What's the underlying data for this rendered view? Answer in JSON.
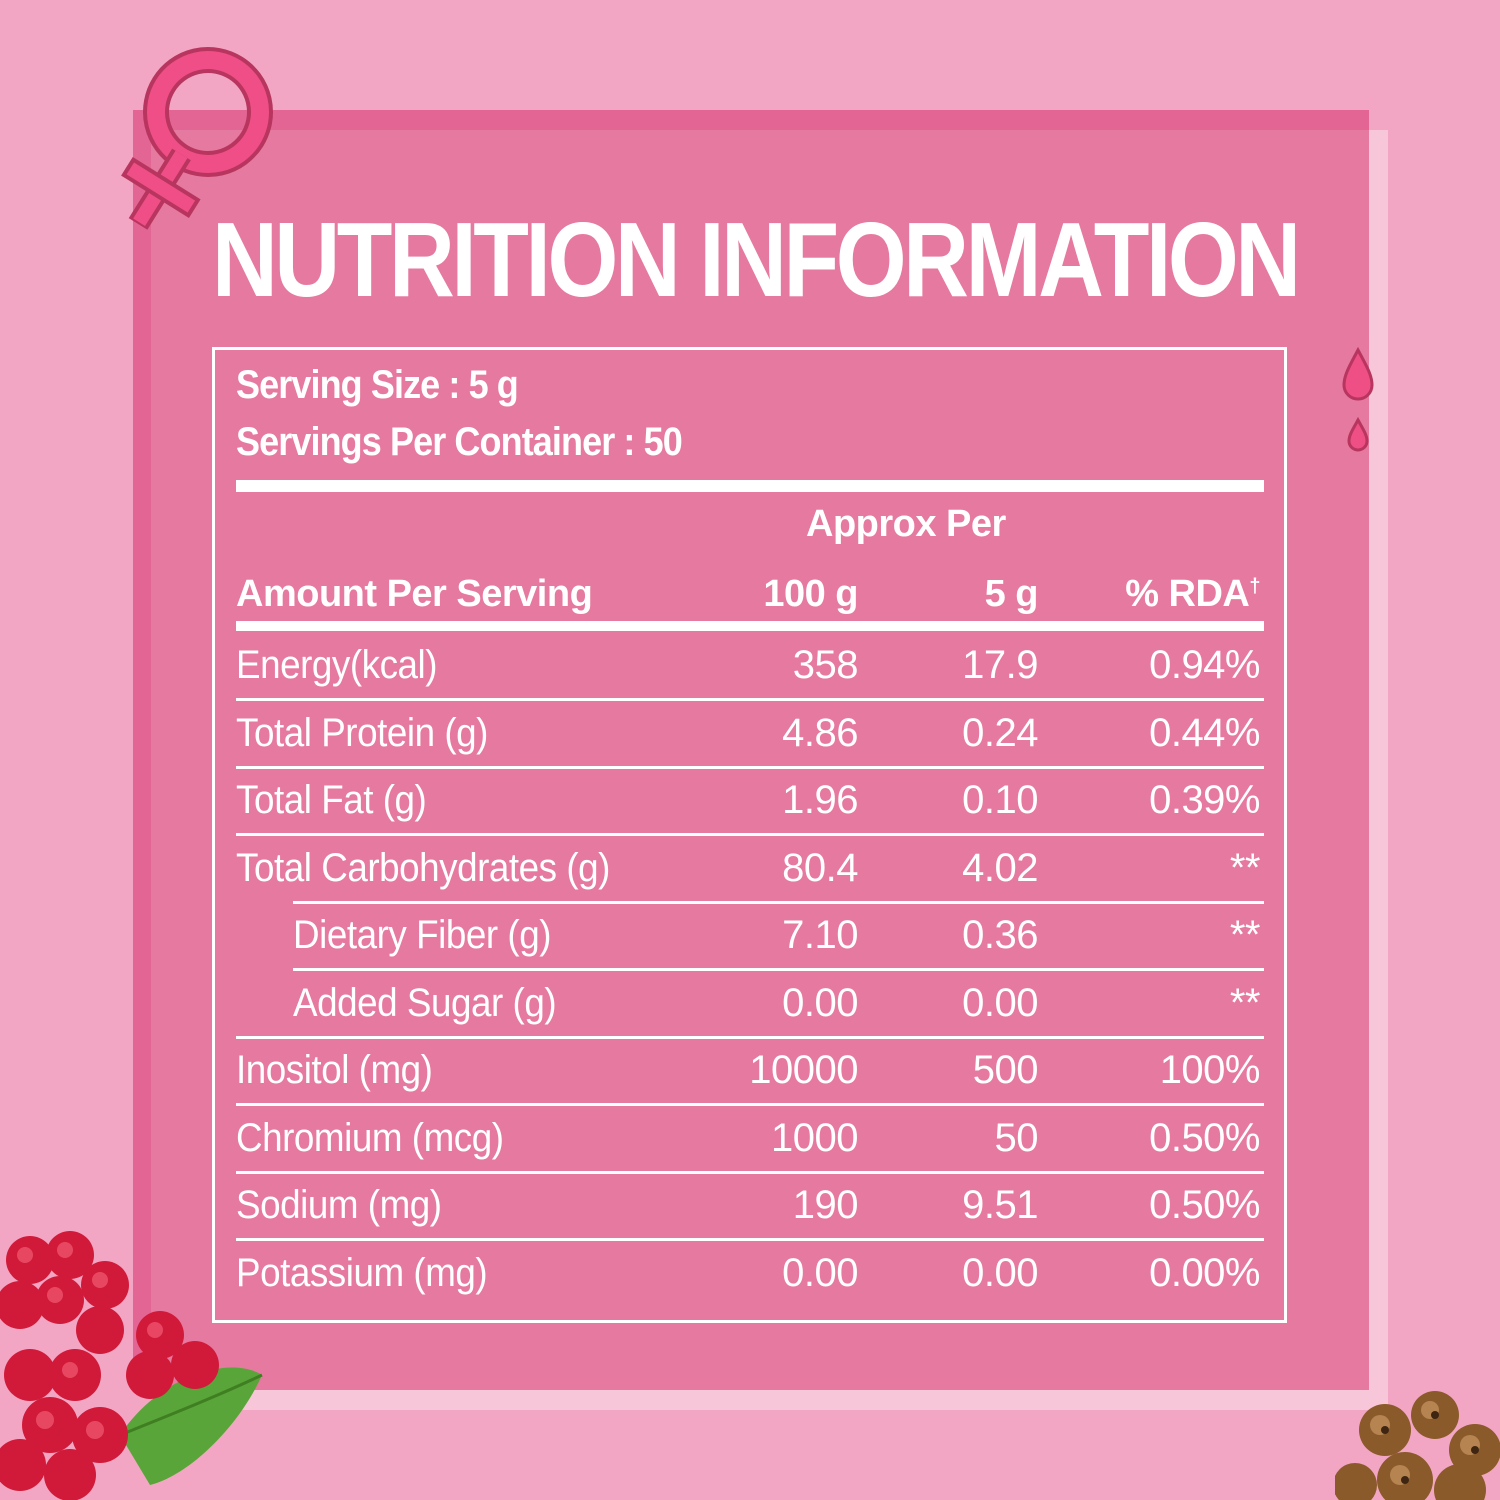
{
  "title": "NUTRITION INFORMATION",
  "serving": {
    "size": "Serving Size : 5 g",
    "per_container": "Servings Per Container : 50"
  },
  "header": {
    "approx_per": "Approx Per",
    "amount_per_serving": "Amount Per Serving",
    "col_100g": "100 g",
    "col_5g": "5 g",
    "col_rda": "% RDA",
    "rda_mark": "†"
  },
  "rows": [
    {
      "name": "Energy(kcal)",
      "per100": "358",
      "per5": "17.9",
      "rda": "0.94%"
    },
    {
      "name": "Total Protein (g)",
      "per100": "4.86",
      "per5": "0.24",
      "rda": "0.44%"
    },
    {
      "name": "Total Fat (g)",
      "per100": "1.96",
      "per5": "0.10",
      "rda": "0.39%"
    },
    {
      "name": "Total Carbohydrates (g)",
      "per100": "80.4",
      "per5": "4.02",
      "rda": "**"
    },
    {
      "name": "Dietary Fiber (g)",
      "per100": "7.10",
      "per5": "0.36",
      "rda": "**"
    },
    {
      "name": "Added Sugar (g)",
      "per100": "0.00",
      "per5": "0.00",
      "rda": "**"
    },
    {
      "name": "Inositol (mg)",
      "per100": "10000",
      "per5": "500",
      "rda": "100%"
    },
    {
      "name": "Chromium (mcg)",
      "per100": "1000",
      "per5": "50",
      "rda": "0.50%"
    },
    {
      "name": "Sodium (mg)",
      "per100": "190",
      "per5": "9.51",
      "rda": "0.50%"
    },
    {
      "name": "Potassium (mg)",
      "per100": "0.00",
      "per5": "0.00",
      "rda": "0.00%"
    }
  ],
  "colors": {
    "background": "#f3a6c3",
    "panel": "#e6799f",
    "panel_border": "#e36594",
    "accent": "#e8457a"
  },
  "icons": [
    "female-symbol-icon",
    "droplets-icon",
    "raspberry-icon",
    "clove-icon"
  ]
}
